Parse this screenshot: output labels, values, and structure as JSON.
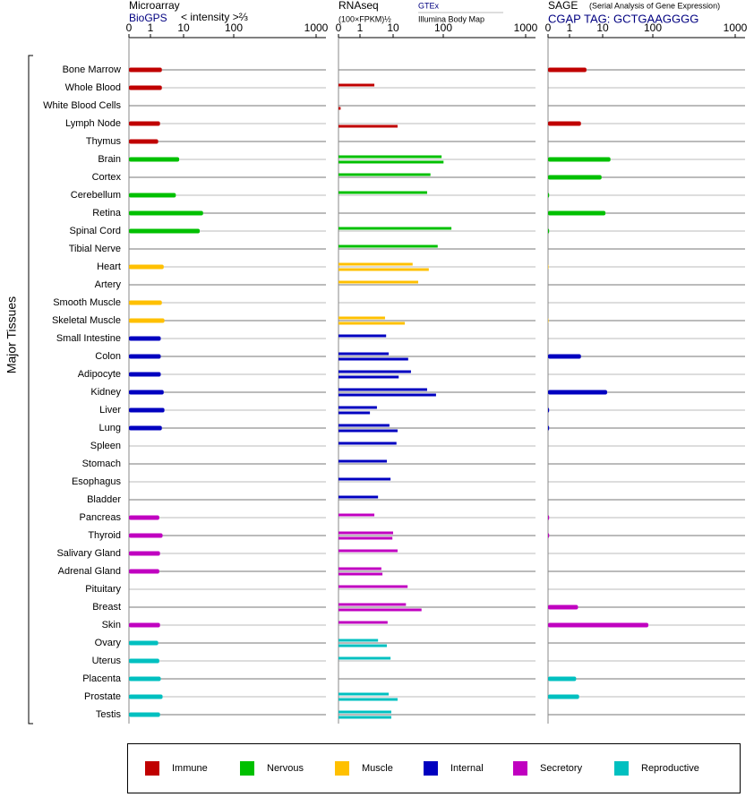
{
  "ylabel": "Major Tissues",
  "groups": [
    {
      "name": "Immune",
      "color": "#c00000",
      "tissues": [
        "Bone Marrow",
        "Whole Blood",
        "White Blood Cells",
        "Lymph Node",
        "Thymus"
      ]
    },
    {
      "name": "Nervous",
      "color": "#00c000",
      "tissues": [
        "Brain",
        "Cortex",
        "Cerebellum",
        "Retina",
        "Spinal Cord",
        "Tibial Nerve"
      ]
    },
    {
      "name": "Muscle",
      "color": "#ffc000",
      "tissues": [
        "Heart",
        "Artery",
        "Smooth Muscle",
        "Skeletal Muscle"
      ]
    },
    {
      "name": "Internal",
      "color": "#0000c0",
      "tissues": [
        "Small Intestine",
        "Colon",
        "Adipocyte",
        "Kidney",
        "Liver",
        "Lung",
        "Spleen",
        "Stomach",
        "Esophagus",
        "Bladder"
      ]
    },
    {
      "name": "Secretory",
      "color": "#c000c0",
      "tissues": [
        "Pancreas",
        "Thyroid",
        "Salivary Gland",
        "Adrenal Gland",
        "Pituitary",
        "Breast",
        "Skin"
      ]
    },
    {
      "name": "Reproductive",
      "color": "#00c0c0",
      "tissues": [
        "Ovary",
        "Uterus",
        "Placenta",
        "Prostate",
        "Testis"
      ]
    }
  ],
  "chart_data": [
    {
      "type": "bar",
      "title": "Microarray",
      "subtitle": "BioGPS",
      "scale_label": "< intensity >⅔",
      "xlim": [
        0,
        1000
      ],
      "xticks": [
        0,
        1,
        10,
        100,
        1000
      ],
      "series": [
        {
          "values": [
            4.1,
            4.1,
            null,
            3.6,
            3.1,
            8.8,
            null,
            7.9,
            45,
            39,
            null,
            4.6,
            null,
            4.1,
            4.8,
            3.8,
            3.8,
            3.8,
            4.6,
            4.8,
            4.1,
            null,
            null,
            null,
            null,
            3.4,
            4.3,
            3.6,
            3.4,
            null,
            null,
            3.6,
            3.1,
            3.4,
            3.8,
            4.3,
            3.6
          ]
        }
      ]
    },
    {
      "type": "bar",
      "title": "RNAseq",
      "scale_label": "(100×FPKM)½",
      "xlim": [
        0,
        1000
      ],
      "xticks": [
        0,
        1,
        10,
        100,
        1000
      ],
      "series": [
        {
          "name": "GTEx",
          "values": [
            null,
            4.9,
            null,
            null,
            null,
            97,
            77,
            71,
            null,
            189,
            90,
            45,
            55,
            null,
            7.8,
            8.1,
            8.8,
            42,
            71,
            5.6,
            9,
            16,
            8.3,
            9.3,
            5.9,
            4.9,
            10,
            18,
            6.8,
            36,
            33,
            8.5,
            5.9,
            9.3,
            null,
            8.8,
            9.5
          ]
        },
        {
          "name": "Illumina Body Map",
          "values": [
            null,
            null,
            0.1,
            18,
            null,
            103,
            null,
            null,
            null,
            null,
            null,
            74,
            null,
            null,
            31,
            null,
            37,
            20,
            87,
            3.7,
            18,
            null,
            null,
            null,
            null,
            null,
            9.8,
            null,
            7.1,
            null,
            61,
            null,
            8.3,
            null,
            null,
            18,
            9.5
          ]
        }
      ]
    },
    {
      "type": "bar",
      "title": "SAGE",
      "subtitle": "(Serial Analysis of Gene Expression)",
      "tag": "CGAP TAG: GCTGAAGGGG",
      "xlim": [
        0,
        1000
      ],
      "xticks": [
        0,
        1,
        10,
        100,
        1000
      ],
      "series": [
        {
          "values": [
            5.6,
            null,
            null,
            4.1,
            null,
            24,
            9.7,
            0.05,
            15,
            0.05,
            null,
            0.02,
            null,
            null,
            0.02,
            null,
            4.1,
            null,
            18,
            0.05,
            0.05,
            null,
            null,
            null,
            null,
            0.05,
            0.05,
            null,
            null,
            null,
            3.3,
            92,
            null,
            null,
            2.8,
            3.6,
            null
          ]
        }
      ]
    }
  ]
}
